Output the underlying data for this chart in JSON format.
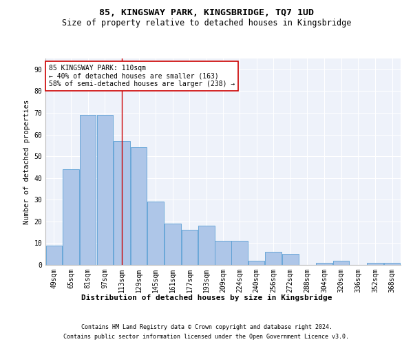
{
  "title1": "85, KINGSWAY PARK, KINGSBRIDGE, TQ7 1UD",
  "title2": "Size of property relative to detached houses in Kingsbridge",
  "xlabel": "Distribution of detached houses by size in Kingsbridge",
  "ylabel": "Number of detached properties",
  "footnote1": "Contains HM Land Registry data © Crown copyright and database right 2024.",
  "footnote2": "Contains public sector information licensed under the Open Government Licence v3.0.",
  "annotation_line1": "85 KINGSWAY PARK: 110sqm",
  "annotation_line2": "← 40% of detached houses are smaller (163)",
  "annotation_line3": "58% of semi-detached houses are larger (238) →",
  "bar_color": "#aec6e8",
  "bar_edge_color": "#5a9fd4",
  "vline_color": "#cc0000",
  "vline_x": 113,
  "categories": [
    "49sqm",
    "65sqm",
    "81sqm",
    "97sqm",
    "113sqm",
    "129sqm",
    "145sqm",
    "161sqm",
    "177sqm",
    "193sqm",
    "209sqm",
    "224sqm",
    "240sqm",
    "256sqm",
    "272sqm",
    "288sqm",
    "304sqm",
    "320sqm",
    "336sqm",
    "352sqm",
    "368sqm"
  ],
  "bin_edges": [
    41,
    57,
    73,
    89,
    105,
    121,
    137,
    153,
    169,
    185,
    201,
    216,
    232,
    248,
    264,
    280,
    296,
    312,
    328,
    344,
    360,
    376
  ],
  "values": [
    9,
    44,
    69,
    69,
    57,
    54,
    29,
    19,
    16,
    18,
    11,
    11,
    2,
    6,
    5,
    0,
    1,
    2,
    0,
    1,
    1
  ],
  "ylim": [
    0,
    95
  ],
  "yticks": [
    0,
    10,
    20,
    30,
    40,
    50,
    60,
    70,
    80,
    90
  ],
  "bg_color": "#eef2fa",
  "grid_color": "#ffffff",
  "title1_fontsize": 9.5,
  "title2_fontsize": 8.5,
  "axis_fontsize": 7,
  "xlabel_fontsize": 8,
  "ylabel_fontsize": 7.5,
  "footnote_fontsize": 6,
  "annot_fontsize": 7
}
